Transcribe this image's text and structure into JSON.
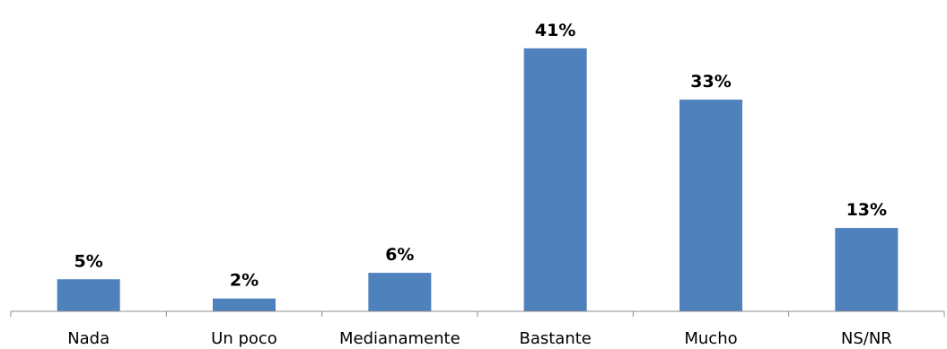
{
  "chart_data": {
    "type": "bar",
    "categories": [
      "Nada",
      "Un poco",
      "Medianamente",
      "Bastante",
      "Mucho",
      "NS/NR"
    ],
    "values": [
      5,
      2,
      6,
      41,
      33,
      13
    ],
    "data_labels": [
      "5%",
      "2%",
      "6%",
      "41%",
      "33%",
      "13%"
    ],
    "title": "",
    "xlabel": "",
    "ylabel": "",
    "ylim": [
      0,
      45
    ],
    "grid": false,
    "legend": "none",
    "bar_color": "#4f81bd"
  }
}
